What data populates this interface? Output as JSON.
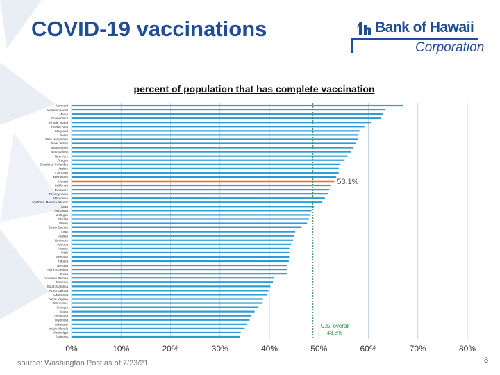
{
  "header": {
    "title": "COVID-19 vaccinations",
    "logo_name": "Bank of Hawaii",
    "logo_sub": "Corporation"
  },
  "footer": {
    "source": "source: Washington Post as of 7/23/21",
    "page_number": "8"
  },
  "colors": {
    "title": "#1f4e96",
    "bar": "#2e9bd2",
    "highlight_bar": "#e8742c",
    "reference_line": "#1f8a3a",
    "grid": "#c9d6e6"
  },
  "chart_data": {
    "type": "bar",
    "orientation": "horizontal",
    "title": "percent of population that has complete vaccination",
    "xlim": [
      0,
      80
    ],
    "x_ticks": [
      "0%",
      "10%",
      "20%",
      "30%",
      "40%",
      "50%",
      "60%",
      "70%",
      "80%"
    ],
    "grid": true,
    "categories": [
      "Vermont",
      "Massachusetts",
      "Maine",
      "Connecticut",
      "Rhode Island",
      "Puerto Rico",
      "Maryland",
      "Guam",
      "New Hampshire",
      "New Jersey",
      "Washington",
      "New Mexico",
      "New York",
      "Oregon",
      "District of Columbia",
      "Virginia",
      "Colorado",
      "Minnesota",
      "Hawaii",
      "California",
      "Delaware",
      "Pennsylvania",
      "Wisconsin",
      "Northern Mariana Islands",
      "Iowa",
      "Nebraska",
      "Michigan",
      "Florida",
      "Illinois",
      "South Dakota",
      "Ohio",
      "Alaska",
      "Kentucky",
      "Arizona",
      "Kansas",
      "Utah",
      "Montana",
      "Indiana",
      "Nevada",
      "North Carolina",
      "Texas",
      "American Samoa",
      "Missouri",
      "South Carolina",
      "North Dakota",
      "Oklahoma",
      "West Virginia",
      "Tennessee",
      "Georgia",
      "Idaho",
      "Louisiana",
      "Wyoming",
      "Arkansas",
      "Virgin Islands",
      "Mississippi",
      "Alabama"
    ],
    "values": [
      67.0,
      63.3,
      63.0,
      62.5,
      60.5,
      59.2,
      58.2,
      58.0,
      57.9,
      57.5,
      56.9,
      56.5,
      55.8,
      55.2,
      54.3,
      54.0,
      54.0,
      53.5,
      53.1,
      52.3,
      52.1,
      51.8,
      51.2,
      50.6,
      49.0,
      48.5,
      48.2,
      48.0,
      47.6,
      46.5,
      45.2,
      45.0,
      44.8,
      44.4,
      44.0,
      44.0,
      44.0,
      43.9,
      43.5,
      43.5,
      43.5,
      41.0,
      40.7,
      40.2,
      39.8,
      39.5,
      38.7,
      38.5,
      37.8,
      37.0,
      36.3,
      36.0,
      35.5,
      35.0,
      34.2,
      34.0
    ],
    "highlight": {
      "category": "Hawaii",
      "label": "53.1%"
    },
    "reference_line": {
      "value": 48.8,
      "label_line1": "U.S. overall",
      "label_line2": "48.8%"
    }
  }
}
